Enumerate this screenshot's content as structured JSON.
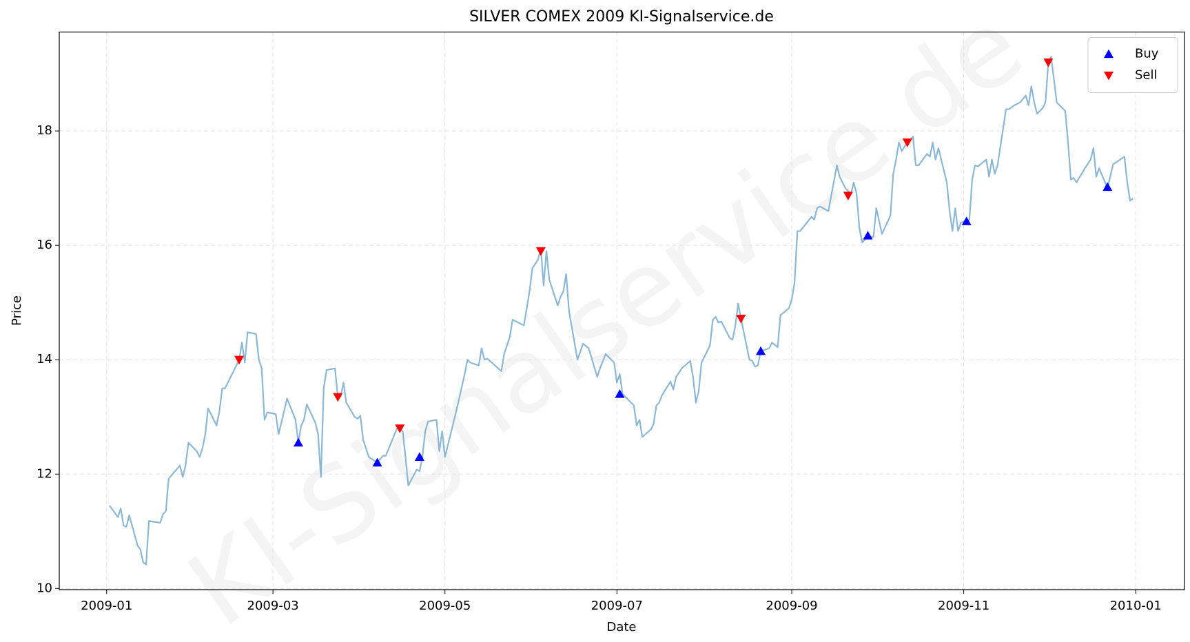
{
  "chart_data": {
    "type": "line",
    "title": "SILVER COMEX 2009 KI-Signalservice.de",
    "xlabel": "Date",
    "ylabel": "Price",
    "watermark": "KI-Signalservice.de",
    "xlim": [
      -16.8,
      382.3
    ],
    "xticks": [
      {
        "value": 0,
        "label": "2009-01"
      },
      {
        "value": 59,
        "label": "2009-03"
      },
      {
        "value": 120,
        "label": "2009-05"
      },
      {
        "value": 181,
        "label": "2009-07"
      },
      {
        "value": 243,
        "label": "2009-09"
      },
      {
        "value": 304,
        "label": "2009-11"
      },
      {
        "value": 365,
        "label": "2010-01"
      }
    ],
    "ylim": [
      9.98,
      19.73
    ],
    "yticks": [
      10,
      12,
      14,
      16,
      18
    ],
    "grid": true,
    "legend": "upper right",
    "series": [
      {
        "color": "#8cb8d8",
        "marker": "line",
        "x": [
          1,
          4,
          5,
          6,
          7,
          8,
          11,
          12,
          13,
          14,
          15,
          19,
          20,
          21,
          22,
          26,
          27,
          28,
          29,
          32,
          33,
          34,
          35,
          36,
          39,
          40,
          41,
          42,
          47,
          48,
          49,
          50,
          53,
          54,
          55,
          56,
          57,
          60,
          61,
          64,
          67,
          68,
          69,
          70,
          71,
          74,
          75,
          76,
          77,
          78,
          81,
          82,
          83,
          84,
          85,
          88,
          89,
          90,
          91,
          93,
          96,
          98,
          99,
          103,
          105,
          106,
          107,
          110,
          111,
          112,
          113,
          114,
          117,
          118,
          119,
          120,
          124,
          127,
          128,
          129,
          132,
          133,
          134,
          135,
          140,
          141,
          143,
          144,
          148,
          150,
          151,
          153,
          154,
          155,
          156,
          157,
          160,
          161,
          162,
          163,
          164,
          167,
          169,
          171,
          174,
          175,
          177,
          180,
          181,
          182,
          183,
          184,
          186,
          187,
          188,
          189,
          190,
          193,
          194,
          195,
          196,
          197,
          200,
          201,
          202,
          204,
          207,
          208,
          209,
          210,
          211,
          214,
          215,
          216,
          217,
          218,
          221,
          222,
          223,
          224,
          225,
          228,
          229,
          230,
          231,
          232,
          235,
          236,
          238,
          239,
          242,
          243,
          244,
          245,
          246,
          250,
          251,
          252,
          253,
          256,
          259,
          260,
          262,
          264,
          265,
          266,
          267,
          268,
          270,
          272,
          273,
          275,
          278,
          279,
          280,
          281,
          282,
          284,
          286,
          287,
          288,
          291,
          292,
          293,
          294,
          295,
          298,
          299,
          300,
          301,
          302,
          303,
          306,
          307,
          308,
          309,
          312,
          313,
          314,
          315,
          316,
          319,
          320,
          322,
          324,
          326,
          327,
          328,
          329,
          330,
          332,
          333,
          334,
          335,
          337,
          340,
          341,
          342,
          343,
          344,
          347,
          349,
          350,
          351,
          352,
          355,
          357,
          358,
          361,
          362,
          363,
          364
        ],
        "values": [
          11.45,
          11.25,
          11.4,
          11.1,
          11.08,
          11.28,
          10.75,
          10.68,
          10.45,
          10.42,
          11.18,
          11.15,
          11.3,
          11.35,
          11.92,
          12.15,
          11.95,
          12.15,
          12.55,
          12.4,
          12.3,
          12.45,
          12.7,
          13.15,
          12.85,
          13.1,
          13.5,
          13.5,
          14.0,
          14.3,
          13.95,
          14.48,
          14.45,
          14.0,
          13.85,
          12.95,
          13.08,
          13.05,
          12.7,
          13.32,
          12.95,
          12.55,
          12.85,
          12.95,
          13.22,
          12.9,
          12.7,
          11.95,
          13.5,
          13.82,
          13.85,
          13.35,
          13.35,
          13.6,
          13.25,
          13.0,
          12.97,
          13.02,
          12.6,
          12.3,
          12.2,
          12.32,
          12.32,
          12.8,
          12.75,
          12.3,
          11.8,
          12.08,
          12.05,
          12.3,
          12.75,
          12.92,
          12.95,
          12.4,
          12.75,
          12.3,
          13.1,
          13.75,
          14.0,
          13.95,
          13.9,
          14.2,
          14.0,
          14.02,
          13.8,
          14.1,
          14.4,
          14.7,
          14.6,
          15.2,
          15.6,
          15.75,
          15.95,
          15.3,
          15.9,
          15.4,
          14.95,
          15.1,
          15.2,
          15.5,
          14.85,
          14.0,
          14.28,
          14.2,
          13.7,
          13.85,
          14.1,
          13.95,
          13.6,
          13.75,
          13.4,
          13.35,
          13.25,
          13.2,
          12.85,
          12.95,
          12.65,
          12.78,
          12.88,
          13.2,
          13.25,
          13.38,
          13.62,
          13.48,
          13.7,
          13.85,
          13.98,
          13.7,
          13.25,
          13.45,
          13.95,
          14.25,
          14.7,
          14.75,
          14.65,
          14.67,
          14.38,
          14.35,
          14.6,
          14.98,
          14.72,
          14.0,
          13.98,
          13.88,
          13.9,
          14.15,
          14.2,
          14.3,
          14.22,
          14.78,
          14.9,
          15.05,
          15.35,
          16.25,
          16.25,
          16.5,
          16.45,
          16.65,
          16.68,
          16.6,
          17.4,
          17.2,
          17.0,
          16.9,
          17.1,
          16.9,
          16.3,
          16.05,
          16.15,
          16.15,
          16.65,
          16.2,
          16.52,
          17.25,
          17.5,
          17.8,
          17.65,
          17.8,
          17.9,
          17.4,
          17.4,
          17.6,
          17.55,
          17.8,
          17.5,
          17.7,
          17.1,
          16.6,
          16.25,
          16.65,
          16.25,
          16.4,
          16.45,
          17.15,
          17.4,
          17.38,
          17.5,
          17.2,
          17.5,
          17.25,
          17.4,
          18.38,
          18.38,
          18.45,
          18.5,
          18.62,
          18.45,
          18.78,
          18.5,
          18.3,
          18.4,
          18.5,
          19.2,
          19.3,
          18.5,
          18.35,
          17.8,
          17.15,
          17.18,
          17.1,
          17.35,
          17.5,
          17.7,
          17.2,
          17.35,
          17.0,
          17.42,
          17.45,
          17.55,
          17.1,
          16.78,
          16.82
        ]
      },
      {
        "name": "Buy",
        "color": "#0000ff",
        "marker": "up",
        "x": [
          68,
          96,
          111,
          182,
          232,
          270,
          305,
          355
        ],
        "values": [
          12.55,
          12.2,
          12.3,
          13.4,
          14.15,
          16.17,
          16.42,
          17.02
        ]
      },
      {
        "name": "Sell",
        "color": "#ff0000",
        "marker": "down",
        "x": [
          47,
          82,
          104,
          154,
          225,
          263,
          284,
          334
        ],
        "values": [
          14.0,
          13.35,
          12.8,
          15.9,
          14.72,
          16.87,
          17.8,
          19.2
        ]
      }
    ]
  }
}
